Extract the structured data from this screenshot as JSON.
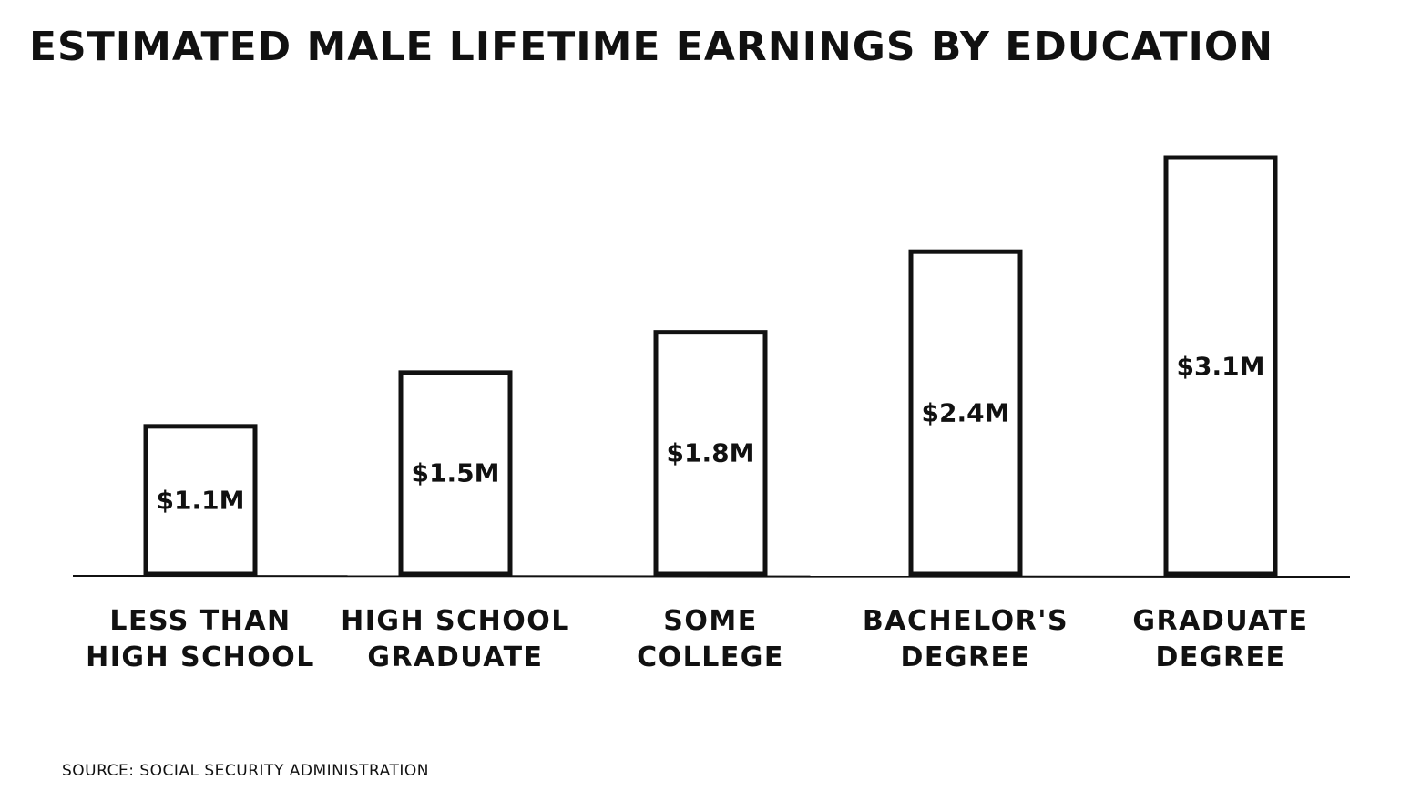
{
  "chart_data": {
    "type": "bar",
    "title": "ESTIMATED MALE LIFETIME EARNINGS BY EDUCATION",
    "categories": [
      "LESS THAN\nHIGH SCHOOL",
      "HIGH SCHOOL\nGRADUATE",
      "SOME\nCOLLEGE",
      "BACHELOR'S\nDEGREE",
      "GRADUATE\nDEGREE"
    ],
    "values": [
      1.1,
      1.5,
      1.8,
      2.4,
      3.1
    ],
    "value_labels": [
      "$1.1M",
      "$1.5M",
      "$1.8M",
      "$2.4M",
      "$3.1M"
    ],
    "color": "#ffffff",
    "source": "SOURCE: SOCIAL SECURITY ADMINISTRATION"
  }
}
